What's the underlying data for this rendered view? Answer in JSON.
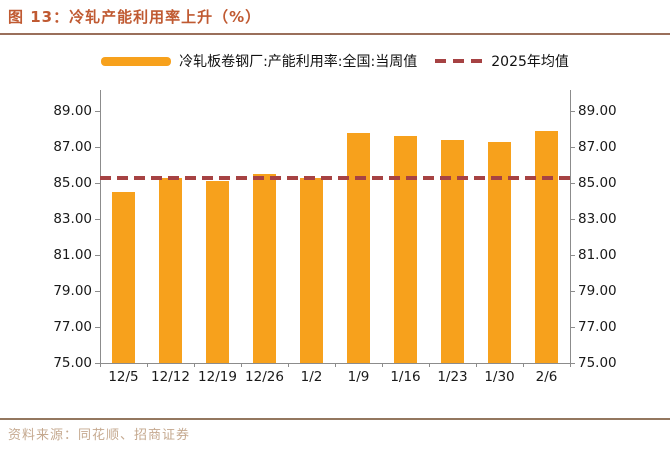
{
  "header": {
    "title": "图 13：冷轧产能利用率上升（%）"
  },
  "legend": {
    "series_label": "冷轧板卷钢厂:产能利用率:全国:当周值",
    "average_label": "2025年均值"
  },
  "colors": {
    "bar": "#f7a11c",
    "average_line": "#a64243",
    "title_text": "#c05a32",
    "rule": "#9a6f5b",
    "axis": "#8c8c8c",
    "source_text": "#c5a98f"
  },
  "chart_data": {
    "type": "bar",
    "title": "冷轧产能利用率上升（%）",
    "categories": [
      "12/5",
      "12/12",
      "12/19",
      "12/26",
      "1/2",
      "1/9",
      "1/16",
      "1/23",
      "1/30",
      "2/6"
    ],
    "series": [
      {
        "name": "冷轧板卷钢厂:产能利用率:全国:当周值",
        "values": [
          84.5,
          85.3,
          85.1,
          85.5,
          85.3,
          87.8,
          87.6,
          87.4,
          87.3,
          87.9
        ]
      }
    ],
    "average_line": {
      "label": "2025年均值",
      "value": 85.3
    },
    "xlabel": "",
    "ylabel": "",
    "ylim": [
      75,
      90
    ],
    "yticks": [
      75,
      77,
      79,
      81,
      83,
      85,
      87,
      89
    ],
    "ytick_labels": [
      "75.00",
      "77.00",
      "79.00",
      "81.00",
      "83.00",
      "85.00",
      "87.00",
      "89.00"
    ],
    "dual_y_axis": true,
    "grid": false,
    "legend_position": "top"
  },
  "footer": {
    "source": "资料来源：同花顺、招商证券"
  }
}
